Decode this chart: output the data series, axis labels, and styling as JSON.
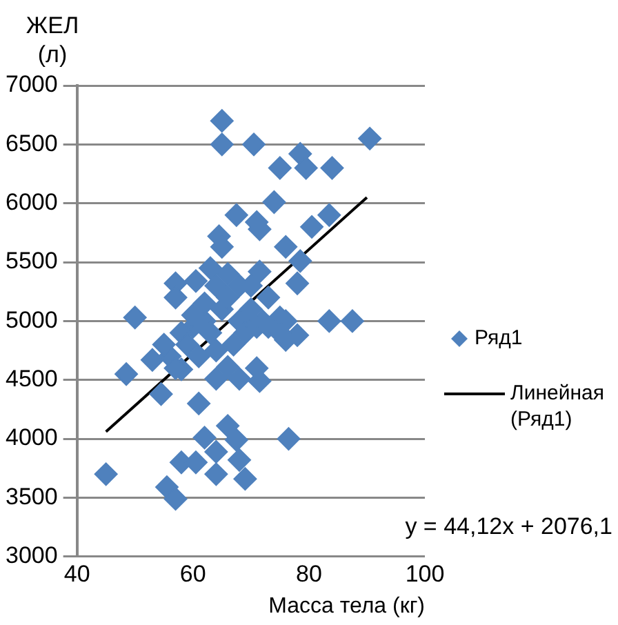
{
  "chart_data": {
    "type": "scatter",
    "xlabel": "Масса тела (кг)",
    "ylabel": "ЖЕЛ (л)",
    "annotations": [
      "y = 44,12x + 2076,1"
    ],
    "xlim": [
      40,
      100
    ],
    "xticks": [
      40,
      60,
      80,
      100
    ],
    "ylim": [
      3000,
      7000
    ],
    "yticks": [
      3000,
      3500,
      4000,
      4500,
      5000,
      5500,
      6000,
      6500,
      7000
    ],
    "grid": "y",
    "legend": "right",
    "marker": "diamond",
    "series": [
      {
        "name": "Ряд1",
        "color": "#4f81bd",
        "x": [
          65,
          65,
          70.5,
          90.5,
          75,
          78.5,
          79.5,
          84,
          74,
          67.5,
          71,
          71.5,
          83.5,
          80.5,
          64.5,
          65,
          76,
          78.5,
          57,
          57,
          60.5,
          63,
          71.5,
          78,
          50,
          75,
          83.5,
          87.5,
          76,
          78,
          48.5,
          53,
          54.5,
          58,
          61,
          64,
          68,
          71.5,
          66,
          45,
          62,
          66,
          67.5,
          76.5,
          58,
          60.5,
          64,
          69,
          68,
          55.5,
          57,
          64,
          60,
          62,
          63,
          65,
          66,
          68,
          70,
          72,
          76,
          58,
          59,
          61,
          64,
          67,
          69,
          71,
          73,
          62,
          64,
          66,
          68,
          70,
          60,
          56,
          57,
          55,
          71,
          73,
          75
        ],
        "values": [
          6700,
          6500,
          6500,
          6550,
          6300,
          6420,
          6300,
          6300,
          6010,
          5900,
          5840,
          5780,
          5900,
          5800,
          5720,
          5630,
          5630,
          5510,
          5320,
          5200,
          5340,
          5450,
          5420,
          5320,
          5030,
          5030,
          5000,
          5000,
          4840,
          4880,
          4550,
          4670,
          4380,
          4590,
          4300,
          4510,
          4510,
          4490,
          4610,
          3700,
          4010,
          4110,
          3990,
          4000,
          3800,
          3800,
          3700,
          3660,
          3820,
          3590,
          3490,
          3890,
          4950,
          5000,
          4900,
          5100,
          5200,
          5000,
          5100,
          5000,
          5000,
          4900,
          4800,
          4700,
          4750,
          4800,
          4900,
          4950,
          5200,
          5150,
          5300,
          5400,
          5300,
          5300,
          5050,
          4700,
          4600,
          4800,
          4600,
          4950,
          4900
        ]
      },
      {
        "name": "Линейная (Ряд1)",
        "type": "line",
        "color": "#000000",
        "line_style": "solid",
        "marker": "none",
        "x": [
          45,
          90
        ],
        "values": [
          4060,
          6050
        ]
      }
    ]
  }
}
